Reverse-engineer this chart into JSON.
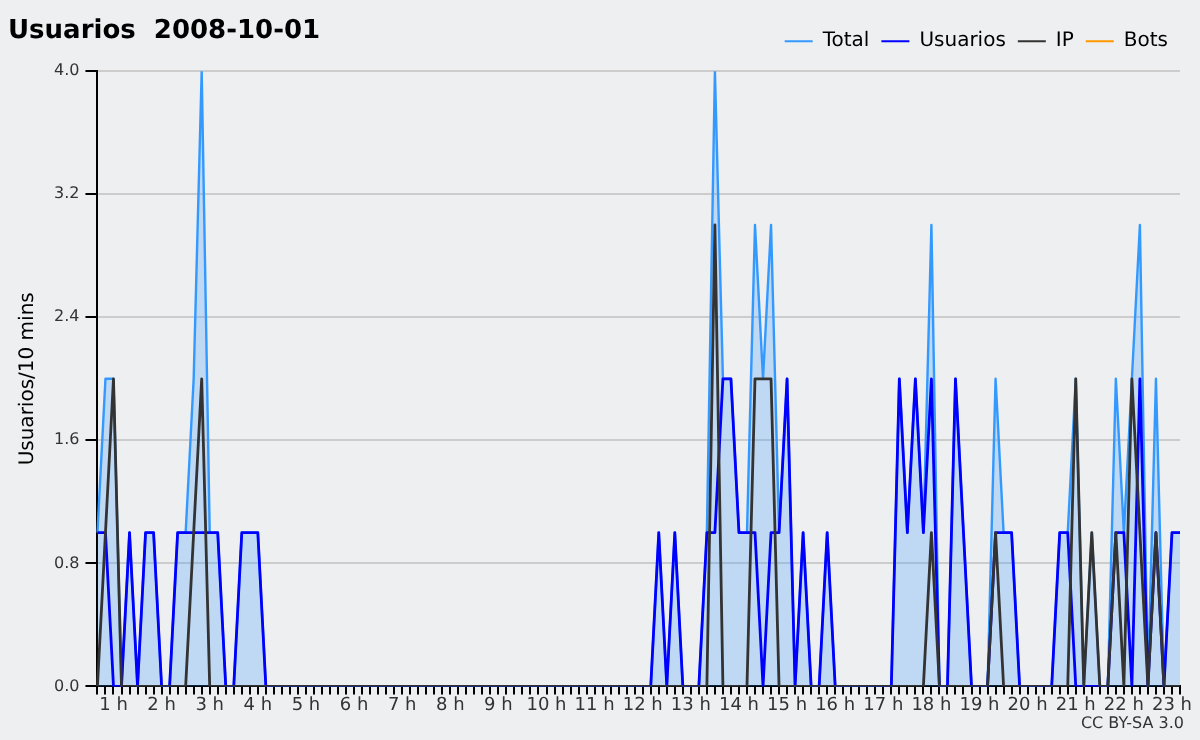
{
  "chart_data": {
    "type": "line",
    "title": "Usuarios  2008-10-01",
    "ylabel": "Usuarios/10 mins",
    "categories": [
      null,
      null,
      "1 h",
      null,
      null,
      null,
      null,
      null,
      "2 h",
      null,
      null,
      null,
      null,
      null,
      "3 h",
      null,
      null,
      null,
      null,
      null,
      "4 h",
      null,
      null,
      null,
      null,
      null,
      "5 h",
      null,
      null,
      null,
      null,
      null,
      "6 h",
      null,
      null,
      null,
      null,
      null,
      "7 h",
      null,
      null,
      null,
      null,
      null,
      "8 h",
      null,
      null,
      null,
      null,
      null,
      "9 h",
      null,
      null,
      null,
      null,
      null,
      "10 h",
      null,
      null,
      null,
      null,
      null,
      "11 h",
      null,
      null,
      null,
      null,
      null,
      "12 h",
      null,
      null,
      null,
      null,
      null,
      "13 h",
      null,
      null,
      null,
      null,
      null,
      "14 h",
      null,
      null,
      null,
      null,
      null,
      "15 h",
      null,
      null,
      null,
      null,
      null,
      "16 h",
      null,
      null,
      null,
      null,
      null,
      "17 h",
      null,
      null,
      null,
      null,
      null,
      "18 h",
      null,
      null,
      null,
      null,
      null,
      "19 h",
      null,
      null,
      null,
      null,
      null,
      "20 h",
      null,
      null,
      null,
      null,
      null,
      "21 h",
      null,
      null,
      null,
      null,
      null,
      "22 h",
      null,
      null,
      null,
      null,
      null,
      "23 h",
      null
    ],
    "series": [
      {
        "name": "Total",
        "type": "area",
        "color": "#3399ff",
        "values": [
          1,
          2,
          2,
          0,
          1,
          0,
          1,
          1,
          0,
          0,
          1,
          1,
          2,
          4,
          1,
          1,
          0,
          0,
          1,
          1,
          1,
          0,
          0,
          0,
          0,
          0,
          0,
          0,
          0,
          0,
          0,
          0,
          0,
          0,
          0,
          0,
          0,
          0,
          0,
          0,
          0,
          0,
          0,
          0,
          0,
          0,
          0,
          0,
          0,
          0,
          0,
          0,
          0,
          0,
          0,
          0,
          0,
          0,
          0,
          0,
          0,
          0,
          0,
          0,
          0,
          0,
          0,
          0,
          0,
          0,
          1,
          0,
          1,
          0,
          0,
          0,
          1,
          4,
          2,
          2,
          1,
          1,
          3,
          2,
          3,
          1,
          2,
          0,
          1,
          0,
          0,
          1,
          0,
          0,
          0,
          0,
          0,
          0,
          0,
          0,
          2,
          1,
          2,
          1,
          3,
          0,
          0,
          2,
          1,
          0,
          0,
          0,
          2,
          1,
          1,
          0,
          0,
          0,
          0,
          0,
          1,
          1,
          2,
          0,
          1,
          0,
          0,
          2,
          1,
          2,
          3,
          0,
          2,
          0,
          1,
          1
        ]
      },
      {
        "name": "Usuarios",
        "type": "line",
        "color": "#0000ff",
        "values": [
          1,
          1,
          0,
          0,
          1,
          0,
          1,
          1,
          0,
          0,
          1,
          1,
          1,
          1,
          1,
          1,
          0,
          0,
          1,
          1,
          1,
          0,
          0,
          0,
          0,
          0,
          0,
          0,
          0,
          0,
          0,
          0,
          0,
          0,
          0,
          0,
          0,
          0,
          0,
          0,
          0,
          0,
          0,
          0,
          0,
          0,
          0,
          0,
          0,
          0,
          0,
          0,
          0,
          0,
          0,
          0,
          0,
          0,
          0,
          0,
          0,
          0,
          0,
          0,
          0,
          0,
          0,
          0,
          0,
          0,
          1,
          0,
          1,
          0,
          0,
          0,
          1,
          1,
          2,
          2,
          1,
          1,
          1,
          0,
          1,
          1,
          2,
          0,
          1,
          0,
          0,
          1,
          0,
          0,
          0,
          0,
          0,
          0,
          0,
          0,
          2,
          1,
          2,
          1,
          2,
          0,
          0,
          2,
          1,
          0,
          0,
          0,
          1,
          1,
          1,
          0,
          0,
          0,
          0,
          0,
          1,
          1,
          0,
          0,
          0,
          0,
          0,
          1,
          1,
          0,
          2,
          0,
          1,
          0,
          1,
          1
        ]
      },
      {
        "name": "IP",
        "type": "line",
        "color": "#333333",
        "values": [
          0,
          1,
          2,
          0,
          0,
          0,
          0,
          0,
          0,
          0,
          0,
          0,
          1,
          2,
          0,
          0,
          0,
          0,
          0,
          0,
          0,
          0,
          0,
          0,
          0,
          0,
          0,
          0,
          0,
          0,
          0,
          0,
          0,
          0,
          0,
          0,
          0,
          0,
          0,
          0,
          0,
          0,
          0,
          0,
          0,
          0,
          0,
          0,
          0,
          0,
          0,
          0,
          0,
          0,
          0,
          0,
          0,
          0,
          0,
          0,
          0,
          0,
          0,
          0,
          0,
          0,
          0,
          0,
          0,
          0,
          0,
          0,
          0,
          0,
          0,
          0,
          0,
          3,
          0,
          0,
          0,
          0,
          2,
          2,
          2,
          0,
          0,
          0,
          0,
          0,
          0,
          0,
          0,
          0,
          0,
          0,
          0,
          0,
          0,
          0,
          0,
          0,
          0,
          0,
          1,
          0,
          0,
          0,
          0,
          0,
          0,
          0,
          1,
          0,
          0,
          0,
          0,
          0,
          0,
          0,
          0,
          0,
          2,
          0,
          1,
          0,
          0,
          1,
          0,
          2,
          1,
          0,
          1,
          0,
          0,
          0
        ]
      },
      {
        "name": "Bots",
        "type": "line",
        "color": "#ff9900",
        "values": [
          null,
          null,
          null,
          null,
          null,
          null,
          null,
          null,
          null,
          null,
          null,
          null,
          null,
          null,
          null,
          null,
          null,
          null,
          null,
          null,
          null,
          null,
          null,
          null,
          null,
          null,
          null,
          null,
          null,
          null,
          null,
          null,
          null,
          null,
          null,
          null,
          null,
          null,
          null,
          null,
          null,
          null,
          null,
          null,
          null,
          null,
          null,
          null,
          null,
          null,
          null,
          null,
          null,
          null,
          null,
          null,
          null,
          null,
          null,
          null,
          null,
          null,
          null,
          null,
          null,
          null,
          null,
          null,
          null,
          null,
          null,
          null,
          null,
          null,
          null,
          null,
          null,
          null,
          null,
          null,
          null,
          null,
          null,
          null,
          null,
          null,
          null,
          null,
          null,
          null,
          null,
          null,
          null,
          null,
          null,
          null,
          null,
          null,
          null,
          null,
          null,
          null,
          null,
          null,
          null,
          null,
          null,
          null,
          null,
          null,
          null,
          null,
          null,
          null,
          null,
          null,
          null,
          null,
          null,
          null,
          null,
          null,
          null,
          null,
          null,
          null,
          null,
          null,
          null,
          null,
          null,
          null,
          null,
          null,
          null,
          null
        ]
      }
    ],
    "ylim": [
      0,
      4
    ],
    "yticks": [
      {
        "value": 0,
        "label": "0.0"
      },
      {
        "value": 0.8,
        "label": "0.8"
      },
      {
        "value": 1.6,
        "label": "1.6"
      },
      {
        "value": 2.4,
        "label": "2.4"
      },
      {
        "value": 3.2,
        "label": "3.2"
      },
      {
        "value": 4,
        "label": "4.0"
      }
    ],
    "grid": "y",
    "legend": "top right",
    "marker": "none",
    "line_style": "solid",
    "annotations": [
      "CC BY-SA 3.0"
    ]
  }
}
